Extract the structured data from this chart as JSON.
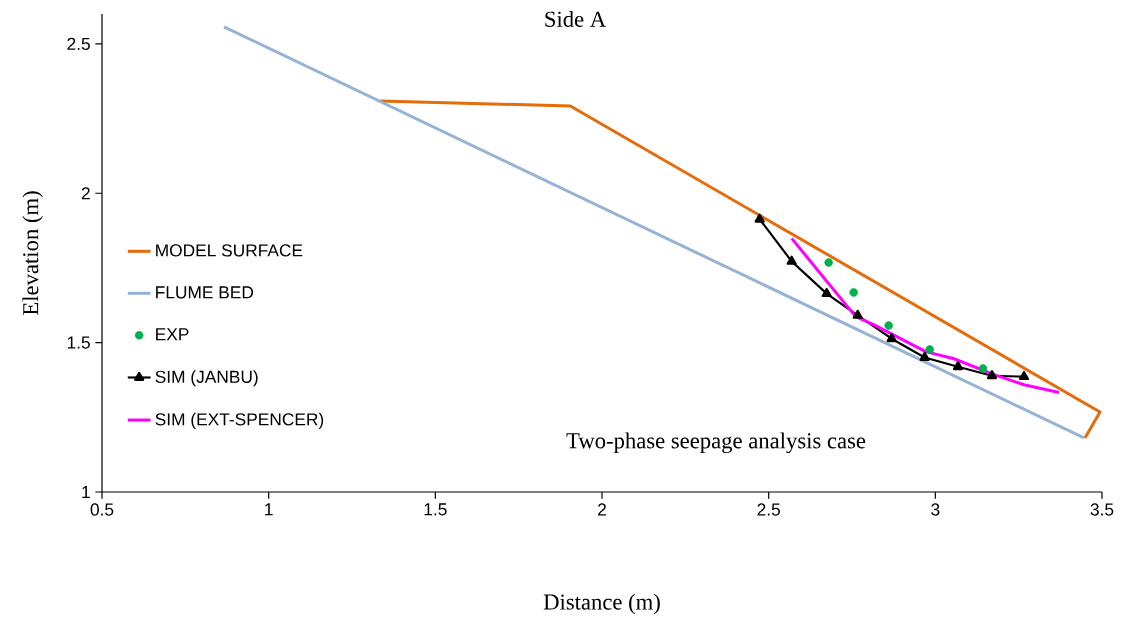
{
  "chart_data": {
    "type": "line",
    "title": "Side A",
    "xlabel": "Distance (m)",
    "ylabel": "Elevation (m)",
    "annotations": [
      "Two-phase seepage analysis case"
    ],
    "xlim": [
      0.5,
      3.5
    ],
    "xticks": [
      0.5,
      1,
      1.5,
      2,
      2.5,
      3,
      3.5
    ],
    "ylim": [
      1,
      2.6
    ],
    "yticks": [
      1,
      1.5,
      2,
      2.5
    ],
    "grid": false,
    "legend": "left",
    "series": [
      {
        "name": "MODEL SURFACE",
        "marker": "none",
        "color": "#e46c0a",
        "x": [
          1.335,
          1.905,
          3.494,
          3.449
        ],
        "values": [
          2.309,
          2.292,
          1.268,
          1.181
        ]
      },
      {
        "name": "FLUME BED",
        "marker": "none",
        "color": "#95b3d7",
        "x": [
          0.866,
          3.446
        ],
        "values": [
          2.557,
          1.181
        ]
      },
      {
        "name": "EXP",
        "type": "scatter",
        "marker": "circle",
        "color": "#00b050",
        "x": [
          2.68,
          2.755,
          2.86,
          2.983,
          3.143
        ],
        "values": [
          1.768,
          1.668,
          1.557,
          1.477,
          1.413
        ]
      },
      {
        "name": "SIM (JANBU)",
        "marker": "triangle",
        "color": "#000000",
        "x": [
          2.473,
          2.569,
          2.674,
          2.767,
          2.869,
          2.968,
          3.068,
          3.17,
          3.266
        ],
        "values": [
          1.913,
          1.772,
          1.664,
          1.591,
          1.513,
          1.45,
          1.419,
          1.389,
          1.386
        ]
      },
      {
        "name": "SIM (EXT-SPENCER)",
        "marker": "none",
        "color": "#ff00ff",
        "x": [
          2.569,
          2.761,
          2.815,
          2.971,
          3.056,
          3.176,
          3.266,
          3.371
        ],
        "values": [
          1.849,
          1.587,
          1.56,
          1.47,
          1.446,
          1.393,
          1.359,
          1.333
        ]
      }
    ]
  }
}
